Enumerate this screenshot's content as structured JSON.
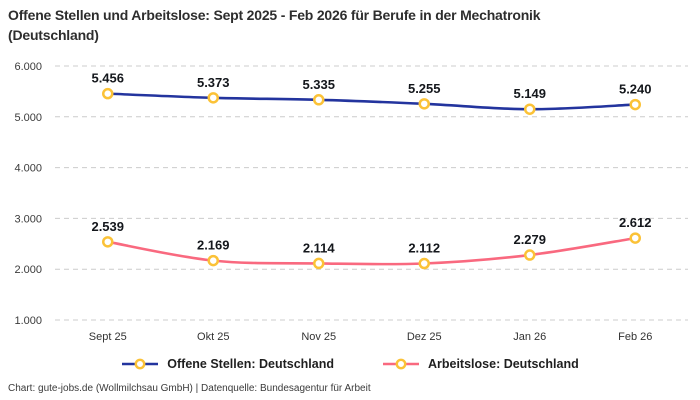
{
  "title": {
    "line1": "Offene Stellen und Arbeitslose: Sept 2025 - Feb 2026 für Berufe in der Mechatronik",
    "line2": "(Deutschland)"
  },
  "footer": "Chart: gute-jobs.de (Wollmilchsau GmbH) | Datenquelle: Bundesagentur für Arbeit",
  "colors": {
    "grid": "#cccccc",
    "marker_ring": "#fbc237",
    "marker_fill": "#ffffff",
    "data_label": "#14171c",
    "tick_label": "#3b3b3b"
  },
  "chart_data": {
    "type": "line",
    "title": "Offene Stellen und Arbeitslose: Sept 2025 - Feb 2026 für Berufe in der Mechatronik (Deutschland)",
    "categories": [
      "Sept 25",
      "Okt 25",
      "Nov 25",
      "Dez 25",
      "Jan 26",
      "Feb 26"
    ],
    "series": [
      {
        "name": "Offene Stellen: Deutschland",
        "color": "#23349e",
        "values": [
          5456,
          5373,
          5335,
          5255,
          5149,
          5240
        ],
        "labels": [
          "5.456",
          "5.373",
          "5.335",
          "5.255",
          "5.149",
          "5.240"
        ]
      },
      {
        "name": "Arbeitslose: Deutschland",
        "color": "#f9697f",
        "values": [
          2539,
          2169,
          2114,
          2112,
          2279,
          2612
        ],
        "labels": [
          "2.539",
          "2.169",
          "2.114",
          "2.112",
          "2.279",
          "2.612"
        ]
      }
    ],
    "ylim": [
      1000,
      6000
    ],
    "yticks": [
      6000,
      5000,
      4000,
      3000,
      2000,
      1000
    ],
    "ytick_labels": [
      "6.000",
      "5.000",
      "4.000",
      "3.000",
      "2.000",
      "1.000"
    ],
    "grid": "horizontal-dashed",
    "legend_position": "bottom",
    "number_format": "de-DE"
  }
}
